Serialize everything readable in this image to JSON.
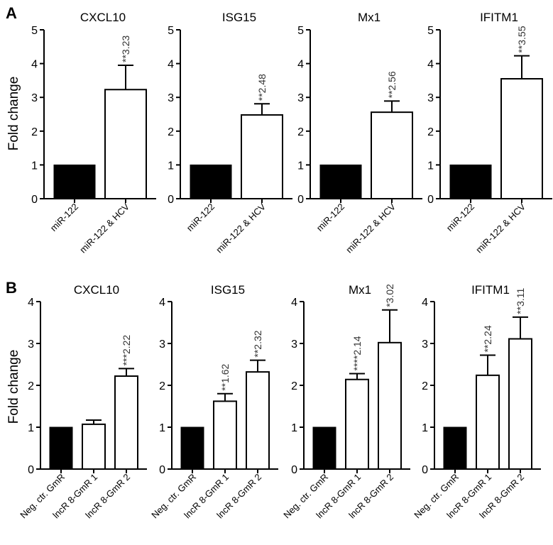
{
  "figure": {
    "panel_a_letter": "A",
    "panel_b_letter": "B",
    "y_axis_label": "Fold change"
  },
  "chart_data": [
    {
      "type": "bar",
      "panel": "A",
      "title": "CXCL10",
      "categories": [
        "miR-122",
        "miR-122 & HCV"
      ],
      "values": [
        1,
        3.23
      ],
      "errors": [
        0,
        0.72
      ],
      "colors": [
        "#000000",
        "#ffffff"
      ],
      "data_labels": [
        "",
        "**3.23"
      ],
      "ylabel": "Fold change",
      "ylim": [
        0,
        5
      ]
    },
    {
      "type": "bar",
      "panel": "A",
      "title": "ISG15",
      "categories": [
        "miR-122",
        "miR-122 & HCV"
      ],
      "values": [
        1,
        2.48
      ],
      "errors": [
        0,
        0.33
      ],
      "colors": [
        "#000000",
        "#ffffff"
      ],
      "data_labels": [
        "",
        "**2.48"
      ],
      "ylabel": "",
      "ylim": [
        0,
        5
      ]
    },
    {
      "type": "bar",
      "panel": "A",
      "title": "Mx1",
      "categories": [
        "miR-122",
        "miR-122 & HCV"
      ],
      "values": [
        1,
        2.56
      ],
      "errors": [
        0,
        0.33
      ],
      "colors": [
        "#000000",
        "#ffffff"
      ],
      "data_labels": [
        "",
        "**2.56"
      ],
      "ylabel": "",
      "ylim": [
        0,
        5
      ]
    },
    {
      "type": "bar",
      "panel": "A",
      "title": "IFITM1",
      "categories": [
        "miR-122",
        "miR-122 & HCV"
      ],
      "values": [
        1,
        3.55
      ],
      "errors": [
        0,
        0.68
      ],
      "colors": [
        "#000000",
        "#ffffff"
      ],
      "data_labels": [
        "",
        "**3.55"
      ],
      "ylabel": "",
      "ylim": [
        0,
        5
      ]
    },
    {
      "type": "bar",
      "panel": "B",
      "title": "CXCL10",
      "categories": [
        "Neg. ctr. GmR",
        "lncR 8-GmR 1",
        "lncR 8-GmR 2"
      ],
      "values": [
        1,
        1.07,
        2.22
      ],
      "errors": [
        0,
        0.1,
        0.18
      ],
      "colors": [
        "#000000",
        "#ffffff",
        "#ffffff"
      ],
      "data_labels": [
        "",
        "",
        "***2.22"
      ],
      "ylabel": "Fold change",
      "ylim": [
        0,
        4
      ]
    },
    {
      "type": "bar",
      "panel": "B",
      "title": "ISG15",
      "categories": [
        "Neg. ctr. GmR",
        "lncR 8-GmR 1",
        "lncR 8-GmR 2"
      ],
      "values": [
        1,
        1.62,
        2.32
      ],
      "errors": [
        0,
        0.18,
        0.28
      ],
      "colors": [
        "#000000",
        "#ffffff",
        "#ffffff"
      ],
      "data_labels": [
        "",
        "**1.62",
        "**2.32"
      ],
      "ylabel": "",
      "ylim": [
        0,
        4
      ]
    },
    {
      "type": "bar",
      "panel": "B",
      "title": "Mx1",
      "categories": [
        "Neg. ctr. GmR",
        "lncR 8-GmR 1",
        "lncR 8-GmR 2"
      ],
      "values": [
        1,
        2.14,
        3.02
      ],
      "errors": [
        0,
        0.14,
        0.78
      ],
      "colors": [
        "#000000",
        "#ffffff",
        "#ffffff"
      ],
      "data_labels": [
        "",
        "****2.14",
        "*3.02"
      ],
      "ylabel": "",
      "ylim": [
        0,
        4
      ]
    },
    {
      "type": "bar",
      "panel": "B",
      "title": "IFITM1",
      "categories": [
        "Neg. ctr. GmR",
        "lncR 8-GmR 1",
        "lncR 8-GmR 2"
      ],
      "values": [
        1,
        2.24,
        3.11
      ],
      "errors": [
        0,
        0.48,
        0.52
      ],
      "colors": [
        "#000000",
        "#ffffff",
        "#ffffff"
      ],
      "data_labels": [
        "",
        "**2.24",
        "**3.11"
      ],
      "ylabel": "",
      "ylim": [
        0,
        4
      ]
    }
  ]
}
